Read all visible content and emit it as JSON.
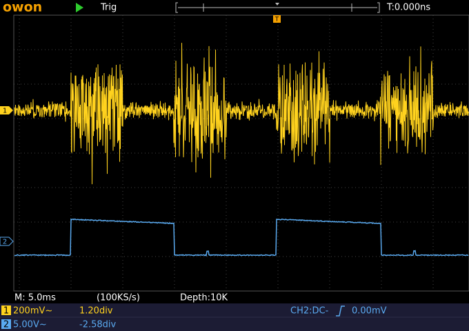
{
  "header": {
    "logo": "owon",
    "status": "Trig",
    "time_offset": "T:0.000ns"
  },
  "markers": {
    "trigger": "T",
    "ch1": "1",
    "ch2": "2"
  },
  "footer": {
    "timebase": "M: 5.0ms",
    "sample_rate": "(100KS/s)",
    "depth": "Depth:10K",
    "ch1": {
      "badge": "1",
      "scale": "200mV~",
      "position": "1.20div"
    },
    "ch2": {
      "badge": "2",
      "scale": "5.00V~",
      "position": "-2.58div"
    },
    "trigger": {
      "source": "CH2:DC-",
      "level": "0.00mV"
    }
  }
}
